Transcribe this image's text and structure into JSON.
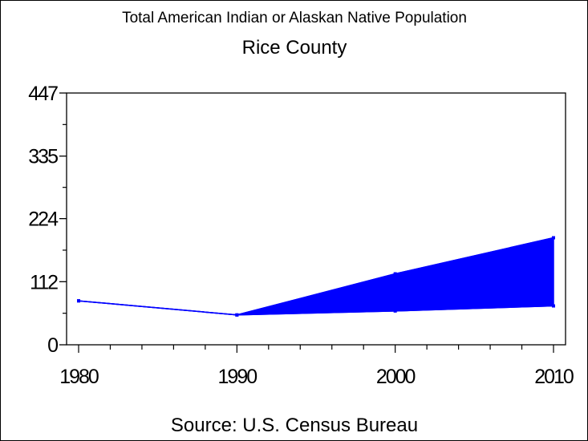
{
  "chart_data": {
    "type": "area",
    "title": "Total American Indian or Alaskan Native Population",
    "subtitle": "Rice County",
    "footnote": "Source: U.S. Census Bureau",
    "xlabel": "",
    "ylabel": "",
    "x": [
      1980,
      1990,
      2000,
      2010
    ],
    "x_ticks": [
      "1980",
      "1990",
      "2000",
      "2010"
    ],
    "xlim": [
      1980,
      2010
    ],
    "y_ticks": [
      "0",
      "112",
      "224",
      "335",
      "447"
    ],
    "ylim": [
      0,
      447
    ],
    "grid": false,
    "series": [
      {
        "role": "lower",
        "values": [
          78,
          53,
          60,
          69
        ]
      },
      {
        "role": "upper",
        "values": [
          78,
          53,
          126,
          190
        ]
      }
    ],
    "fill_between": true,
    "color": "#0000ff"
  }
}
